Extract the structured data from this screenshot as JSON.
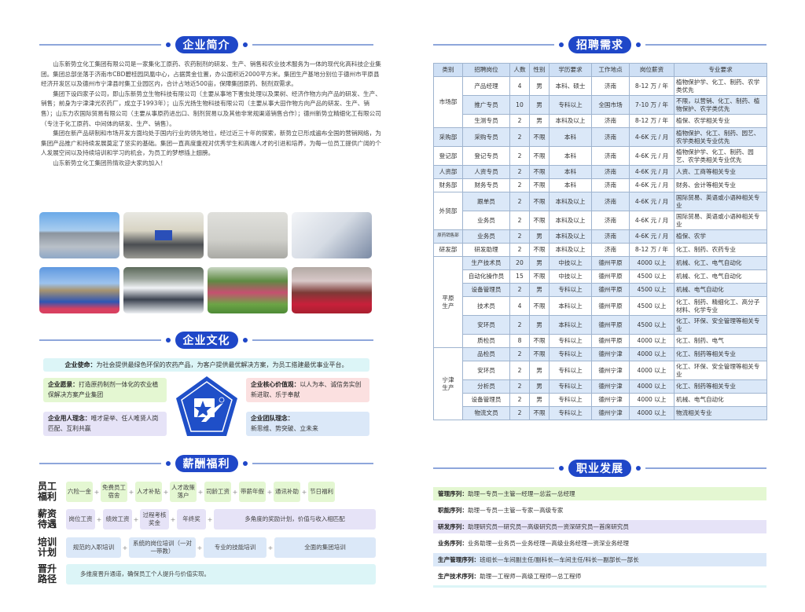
{
  "sections": {
    "intro": "企业简介",
    "culture": "企业文化",
    "benefits": "薪酬福利",
    "recruit": "招聘需求",
    "career": "职业发展"
  },
  "intro": {
    "paragraphs": [
      "山东新势立化工集团有限公司是一家集化工原药、农药制剂的研发、生产、销售和农业技术服务为一体的现代化高科技企业集团。集团总部坐落于济南市CBD碧桂园凤凰中心，占据黄金位置，办公面积近2000平方米。集团生产基地分别位于德州市平原县经济开发区以及德州市宁津县时集工业园区内，合计占地近500亩，保障集团原药、制剂双需求。",
      "集团下设四家子公司，即山东新势立生物科技有限公司（主要从事地下害虫处理以及果树、经济作物方向产品的研发、生产、销售；前身为宁津津光农药厂，成立于1993年）；山东光扬生物科技有限公司（主要从事大田作物方向产品的研发、生产、销售）；山东力农国际贸易有限公司（主要从事原药进出口、制剂贸易以及其他非常规渠道销售合作）；德州新势立精细化工有限公司（专注于化工原药、中间体的研发、生产、销售）。",
      "集团在新产品研制和市场开发方面均处于国内行业的领先地位，经过近三十年的探索，新势立已形成遍布全国的营销网络，为集团产品推广和持续发展奠定了坚实的基础。集团一直高度重视对优秀学生和高端人才的引进和培养，为每一位员工提供广阔的个人发展空间以及持续培训和学习的机会，为员工的梦想插上翅膀。",
      "山东新势立化工集团热情欢迎大家的加入！"
    ]
  },
  "photos": [
    "office-building",
    "meeting-room",
    "reception-lobby",
    "laboratory",
    "team-at-monument",
    "team-on-snow",
    "team-on-grass",
    "team-at-hotel"
  ],
  "culture": {
    "mission": {
      "label": "企业使命：",
      "text": "为社会提供最绿色环保的农药产品，为客户提供最优解决方案，为员工搭建最优事业平台。"
    },
    "vision": {
      "label": "企业愿景：",
      "text": "打造原药制剂一体化的农业植保解决方案产业集团"
    },
    "values": {
      "label": "企业核心价值观：",
      "text": "以人为本、诚信务实创新进取、乐于奉献"
    },
    "talent": {
      "label": "企业用人理念：",
      "text": "唯才是举、任人唯贤人岗匹配、互利共赢"
    },
    "team": {
      "label": "企业团队理念：",
      "text": "新思维、势突破、立未来"
    }
  },
  "benefits": [
    {
      "label": [
        "员工",
        "福利"
      ],
      "items": [
        "六险一金",
        "免费员工宿舍",
        "人才补贴",
        "人才政策落户",
        "司龄工资",
        "带薪年假",
        "通讯补助",
        "节日福利"
      ]
    },
    {
      "label": [
        "薪资",
        "待遇"
      ],
      "items": [
        "岗位工资",
        "绩效工资",
        "过程考核奖金",
        "年终奖",
        "多角度的奖励计划，价值与收入相匹配"
      ]
    },
    {
      "label": [
        "培训",
        "计划"
      ],
      "items": [
        "规范的入职培训",
        "系统的岗位培训（一对一带教）",
        "专业的技能培训",
        "全面的集团培训"
      ]
    },
    {
      "label": [
        "晋升",
        "路径"
      ],
      "items": [
        "多维度晋升通道，确保员工个人提升与价值实现。"
      ]
    }
  ],
  "recruit": {
    "headers": [
      "类别",
      "招聘岗位",
      "人数",
      "性别",
      "学历要求",
      "工作地点",
      "岗位薪资",
      "专业要求"
    ],
    "groups": [
      {
        "dept": "市场部",
        "rows": [
          [
            "产品经理",
            "4",
            "男",
            "本科、硕士",
            "济南",
            "8-12 万 / 年",
            "植物保护学、化工、制药、农学类优先"
          ],
          [
            "推广专员",
            "10",
            "男",
            "专科以上",
            "全国市场",
            "7-10 万 / 年",
            "不限，以营销、化工、制药、植物保护、农学类优先"
          ],
          [
            "生测专员",
            "2",
            "男",
            "本科及以上",
            "济南",
            "8-12 万 / 年",
            "植保、农学相关专业"
          ]
        ]
      },
      {
        "dept": "采购部",
        "rows": [
          [
            "采购专员",
            "2",
            "不限",
            "本科",
            "济南",
            "4-6K 元 / 月",
            "植物保护、化工、制药、园艺、农学类相关专业优先"
          ]
        ]
      },
      {
        "dept": "登记部",
        "rows": [
          [
            "登记专员",
            "2",
            "不限",
            "本科",
            "济南",
            "4-6K 元 / 月",
            "植物保护学、化工、制药、园艺、农学类相关专业优先"
          ]
        ]
      },
      {
        "dept": "人资部",
        "rows": [
          [
            "人资专员",
            "2",
            "不限",
            "本科",
            "济南",
            "4-6K 元 / 月",
            "人资、工商等相关专业"
          ]
        ]
      },
      {
        "dept": "财务部",
        "rows": [
          [
            "财务专员",
            "2",
            "不限",
            "本科",
            "济南",
            "4-6K 元 / 月",
            "财务、会计等相关专业"
          ]
        ]
      },
      {
        "dept": "外贸部",
        "rows": [
          [
            "跟单员",
            "2",
            "不限",
            "本科及以上",
            "济南",
            "4-6K 元 / 月",
            "国际贸易、英语或小语种相关专业"
          ],
          [
            "业务员",
            "2",
            "不限",
            "本科及以上",
            "济南",
            "4-6K 元 / 月",
            "国际贸易、英语或小语种相关专业"
          ]
        ]
      },
      {
        "dept": "原药销售部",
        "rows": [
          [
            "业务员",
            "2",
            "男",
            "本科及以上",
            "济南",
            "4-6K 元 / 月",
            "植保、农学"
          ]
        ]
      },
      {
        "dept": "研发部",
        "rows": [
          [
            "研发助理",
            "2",
            "不限",
            "本科及以上",
            "济南",
            "8-12 万 / 年",
            "化工、制药、农药专业"
          ]
        ]
      },
      {
        "dept": "平原生产",
        "rows": [
          [
            "生产技术员",
            "20",
            "男",
            "中技以上",
            "德州平原",
            "4000 以上",
            "机械、化工、电气自动化"
          ],
          [
            "自动化操作员",
            "15",
            "不限",
            "中技以上",
            "德州平原",
            "4500 以上",
            "机械、化工、电气自动化"
          ],
          [
            "设备管理员",
            "2",
            "男",
            "专科以上",
            "德州平原",
            "4500 以上",
            "机械、电气自动化"
          ],
          [
            "技术员",
            "4",
            "不限",
            "本科以上",
            "德州平原",
            "4500 以上",
            "化工、制药、精细化工、高分子材料、化学专业"
          ],
          [
            "安环员",
            "2",
            "男",
            "本科以上",
            "德州平原",
            "4500 以上",
            "化工、环保、安全管理等相关专业"
          ],
          [
            "质检员",
            "8",
            "不限",
            "专科以上",
            "德州平原",
            "4000 以上",
            "化工、制药、电气"
          ]
        ]
      },
      {
        "dept": "宁津生产",
        "rows": [
          [
            "品检员",
            "2",
            "不限",
            "专科以上",
            "德州宁津",
            "4000 以上",
            "化工、制药等相关专业"
          ],
          [
            "安环员",
            "2",
            "男",
            "专科以上",
            "德州宁津",
            "4000 以上",
            "化工、环保、安全管理等相关专业"
          ],
          [
            "分析员",
            "2",
            "男",
            "专科以上",
            "德州宁津",
            "4000 以上",
            "化工、制药等相关专业"
          ],
          [
            "设备管理员",
            "2",
            "男",
            "专科以上",
            "德州宁津",
            "4000 以上",
            "机械、电气自动化"
          ],
          [
            "物流文员",
            "2",
            "不限",
            "专科以上",
            "德州宁津",
            "4000 以上",
            "物流相关专业"
          ]
        ]
      }
    ]
  },
  "career": [
    {
      "label": "管理序列：",
      "text": "助理—专员—主管—经理—总监—总经理"
    },
    {
      "label": "职能序列：",
      "text": "助理—专员—主管—专家—高级专家"
    },
    {
      "label": "研发序列：",
      "text": "助理研究员—研究员—高级研究员—资深研究员—首席研究员"
    },
    {
      "label": "业务序列：",
      "text": "业务助理—业务员—业务经理—高级业务经理—资深业务经理"
    },
    {
      "label": "生产管理序列：",
      "text": "班组长—车间副主任/副科长—车间主任/科长—副部长—部长"
    },
    {
      "label": "生产技术序列：",
      "text": "助理—工程师—高级工程师—总工程师"
    }
  ],
  "colors": {
    "brand": "#1f47c8",
    "green": "#e4f7d2",
    "purple": "#e6e3f7",
    "blue": "#dbe8f8",
    "cyan": "#dcf5f7",
    "pink": "#fbe0e0"
  }
}
